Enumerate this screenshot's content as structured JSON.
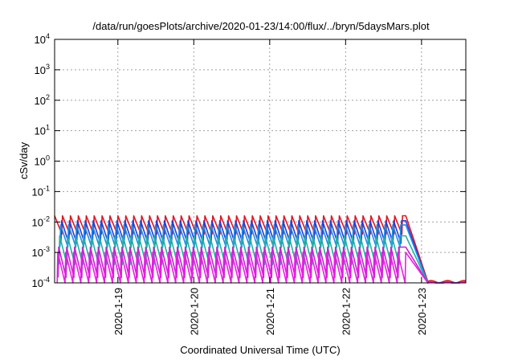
{
  "chart_data": {
    "type": "line",
    "title": "/data/run/goesPlots/archive/2020-01-23/14:00/flux/../bryn/5daysMars.plot",
    "xlabel": "Coordinated Universal Time (UTC)",
    "ylabel": "cSv/day",
    "y_scale": "log",
    "ylim": [
      0.0001,
      10000
    ],
    "y_ticks": [
      {
        "base": "10",
        "exp": "-4",
        "value": 0.0001
      },
      {
        "base": "10",
        "exp": "-3",
        "value": 0.001
      },
      {
        "base": "10",
        "exp": "-2",
        "value": 0.01
      },
      {
        "base": "10",
        "exp": "-1",
        "value": 0.1
      },
      {
        "base": "10",
        "exp": "0",
        "value": 1
      },
      {
        "base": "10",
        "exp": "1",
        "value": 10
      },
      {
        "base": "10",
        "exp": "2",
        "value": 100
      },
      {
        "base": "10",
        "exp": "3",
        "value": 1000
      },
      {
        "base": "10",
        "exp": "4",
        "value": 10000
      }
    ],
    "xlim": [
      "2020-01-18 04:00",
      "2020-01-23 14:00"
    ],
    "x_ticks": [
      {
        "label": "2020-1-19",
        "value": "2020-01-19 00:00"
      },
      {
        "label": "2020-1-20",
        "value": "2020-01-20 00:00"
      },
      {
        "label": "2020-1-21",
        "value": "2020-01-21 00:00"
      },
      {
        "label": "2020-1-22",
        "value": "2020-01-22 00:00"
      },
      {
        "label": "2020-1-23",
        "value": "2020-01-23 00:00"
      }
    ],
    "grid": true,
    "sawtooth_period_hours": 2.5,
    "series": [
      {
        "color": "#e8141e",
        "peak": 0.016,
        "trough": 0.004,
        "final": 0.00011
      },
      {
        "color": "#1f3fe0",
        "peak": 0.011,
        "trough": 0.002,
        "final": 0.0001
      },
      {
        "color": "#1a8ee8",
        "peak": 0.008,
        "trough": 0.0015,
        "final": 0.0001
      },
      {
        "color": "#23b3a0",
        "peak": 0.0035,
        "trough": 0.0004,
        "final": 0.0001
      },
      {
        "color": "#c81fd8",
        "peak": 0.0015,
        "trough": 0.00015,
        "final": 0.0001
      },
      {
        "color": "#e81fe0",
        "peak": 0.001,
        "trough": 0.0001,
        "final": 0.0001
      }
    ],
    "decay_start": "2020-01-22 19:00",
    "decay_end": "2020-01-23 02:00"
  }
}
